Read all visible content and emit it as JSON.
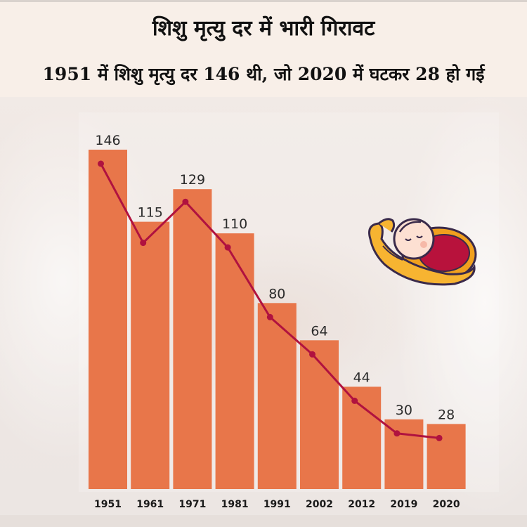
{
  "header": {
    "title": "शिशु मृत्यु दर में भारी गिरावट",
    "subtitle": "1951 में शिशु मृत्यु दर 146 थी, जो 2020 में घटकर 28 हो गई"
  },
  "colors": {
    "bar": "#e8764a",
    "line": "#b0123f",
    "label": "#2b2b2b",
    "tick": "#1a1a1a"
  },
  "icon": {
    "name": "baby-in-hands-icon"
  },
  "chart_data": {
    "type": "bar",
    "categories": [
      "1951",
      "1961",
      "1971",
      "1981",
      "1991",
      "2002",
      "2012",
      "2019",
      "2020"
    ],
    "values": [
      146,
      115,
      129,
      110,
      80,
      64,
      44,
      30,
      28
    ],
    "line_values": [
      146,
      115,
      129,
      110,
      80,
      64,
      44,
      30,
      28
    ],
    "data_labels": [
      "146",
      "115",
      "129",
      "110",
      "80",
      "64",
      "44",
      "30",
      "28"
    ],
    "ylim": [
      0,
      146
    ],
    "grid": false,
    "legend": "none"
  }
}
